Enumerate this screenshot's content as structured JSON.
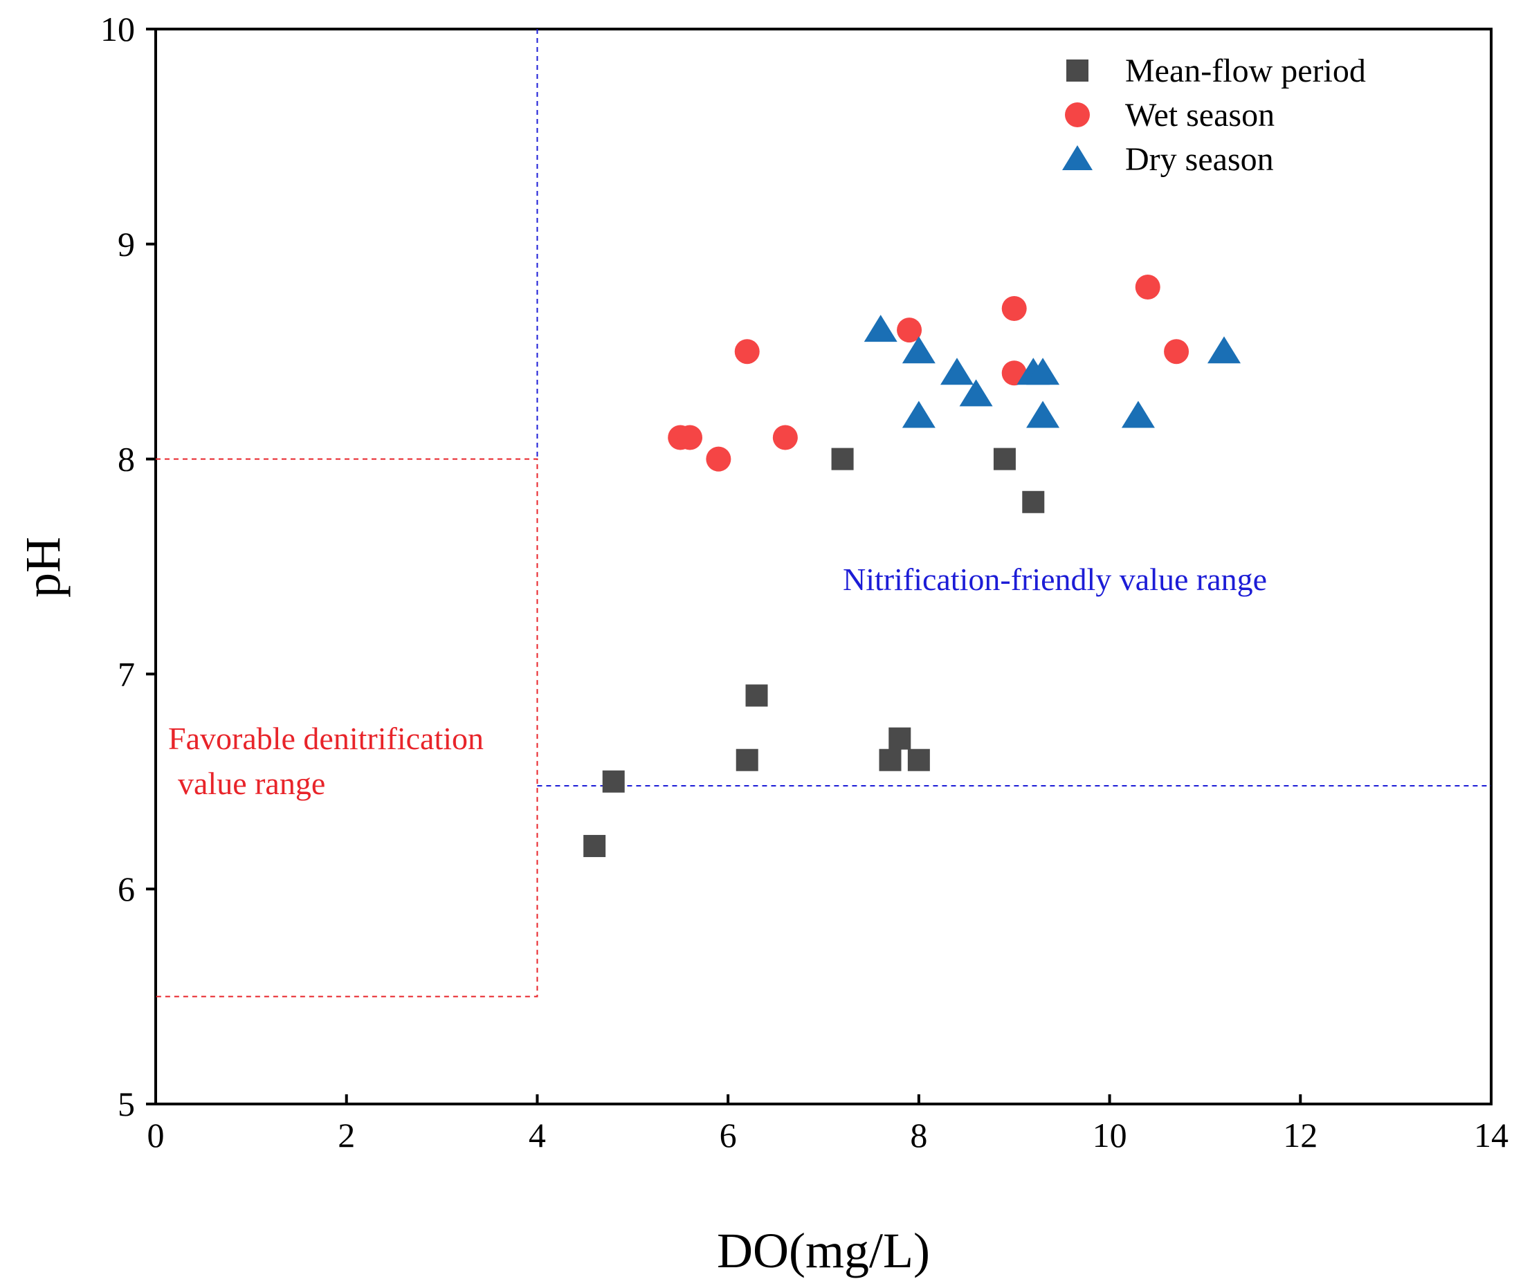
{
  "chart_data": {
    "type": "scatter",
    "title": "",
    "xlabel": "DO(mg/L)",
    "ylabel": "pH",
    "xlim": [
      0,
      14
    ],
    "ylim": [
      5,
      10
    ],
    "x_ticks": [
      0,
      2,
      4,
      6,
      8,
      10,
      12,
      14
    ],
    "y_ticks": [
      5,
      6,
      7,
      8,
      9,
      10
    ],
    "x_tick_labels": [
      "0",
      "2",
      "4",
      "6",
      "8",
      "10",
      "12",
      "14"
    ],
    "y_tick_labels": [
      "5",
      "6",
      "7",
      "8",
      "9",
      "10"
    ],
    "legend_position": "top-right",
    "series": [
      {
        "name": "Mean-flow period",
        "marker": "square",
        "color": "#4a4a4a",
        "points": [
          [
            4.6,
            6.2
          ],
          [
            4.8,
            6.5
          ],
          [
            6.2,
            6.6
          ],
          [
            6.3,
            6.9
          ],
          [
            7.2,
            8.0
          ],
          [
            7.7,
            6.6
          ],
          [
            7.8,
            6.7
          ],
          [
            8.0,
            6.6
          ],
          [
            8.9,
            8.0
          ],
          [
            9.2,
            7.8
          ]
        ]
      },
      {
        "name": "Wet season",
        "marker": "circle",
        "color": "#f54545",
        "points": [
          [
            5.5,
            8.1
          ],
          [
            5.6,
            8.1
          ],
          [
            5.9,
            8.0
          ],
          [
            6.2,
            8.5
          ],
          [
            6.6,
            8.1
          ],
          [
            7.9,
            8.6
          ],
          [
            9.0,
            8.7
          ],
          [
            9.0,
            8.4
          ],
          [
            10.4,
            8.8
          ],
          [
            10.7,
            8.5
          ]
        ]
      },
      {
        "name": "Dry season",
        "marker": "triangle",
        "color": "#1a6fb5",
        "points": [
          [
            7.6,
            8.6
          ],
          [
            8.0,
            8.5
          ],
          [
            8.0,
            8.2
          ],
          [
            8.4,
            8.4
          ],
          [
            8.6,
            8.3
          ],
          [
            9.2,
            8.4
          ],
          [
            9.3,
            8.4
          ],
          [
            9.3,
            8.2
          ],
          [
            10.3,
            8.2
          ],
          [
            11.2,
            8.5
          ]
        ]
      }
    ],
    "regions": [
      {
        "name": "denitrification",
        "color": "#e8242a",
        "x_range": [
          0,
          4
        ],
        "y_range": [
          5.5,
          8
        ],
        "label_line1": "Favorable denitrification",
        "label_line2": "value range"
      },
      {
        "name": "nitrification",
        "color": "#1c1cd6",
        "x_from": 4,
        "y_from": 6.48,
        "label": "Nitrification-friendly value range"
      }
    ]
  }
}
